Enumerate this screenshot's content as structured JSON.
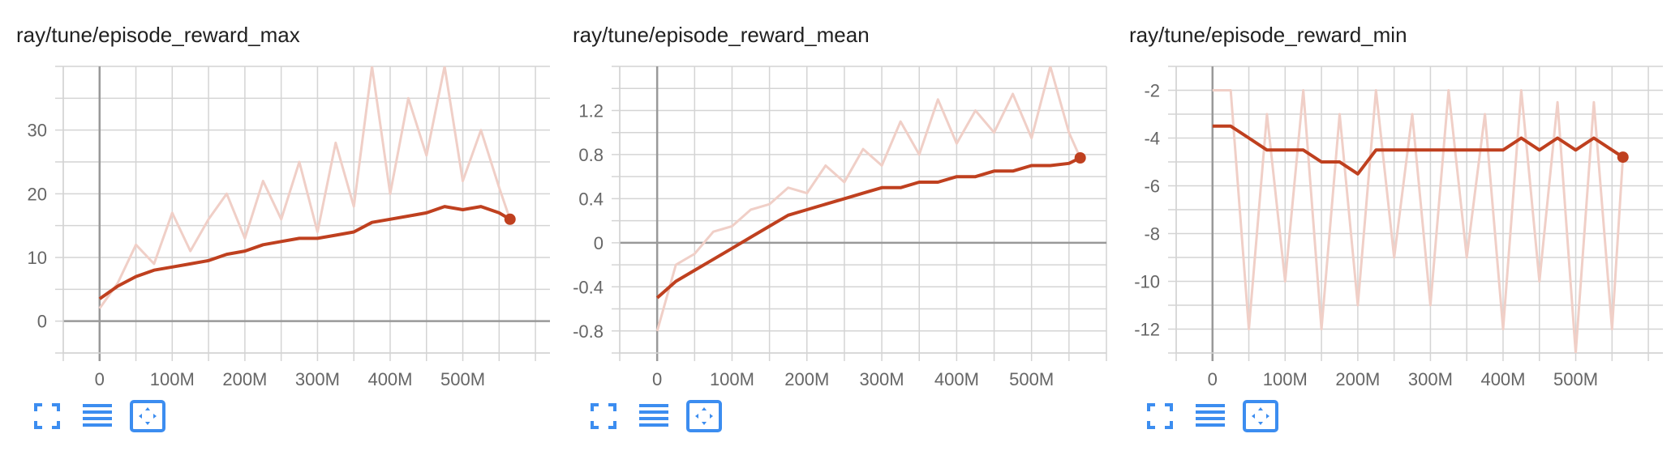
{
  "colors": {
    "smoothed": "#bf401f",
    "raw": "#f0cfc7",
    "grid": "#d4d4d4",
    "axis": "#999999",
    "tick_text": "#666666",
    "title_text": "#212121",
    "icon": "#3c8df0"
  },
  "toolbar": {
    "icons": [
      "fullscreen-icon",
      "toggle-log-scale-icon",
      "fit-domain-icon"
    ]
  },
  "chart_data": [
    {
      "type": "line",
      "title": "ray/tune/episode_reward_max",
      "xlabel": "",
      "ylabel": "",
      "xlim": [
        -50000000,
        620000000
      ],
      "ylim": [
        -5,
        40
      ],
      "xticks": [
        0,
        100000000,
        200000000,
        300000000,
        400000000,
        500000000
      ],
      "xtick_labels": [
        "0",
        "100M",
        "200M",
        "300M",
        "400M",
        "500M"
      ],
      "yticks": [
        0,
        10,
        20,
        30
      ],
      "ytick_labels": [
        "0",
        "10",
        "20",
        "30"
      ],
      "grid": true,
      "series": [
        {
          "role": "smoothed",
          "x": [
            0,
            25000000,
            50000000,
            75000000,
            100000000,
            125000000,
            150000000,
            175000000,
            200000000,
            225000000,
            250000000,
            275000000,
            300000000,
            325000000,
            350000000,
            375000000,
            400000000,
            425000000,
            450000000,
            475000000,
            500000000,
            525000000,
            550000000,
            565000000
          ],
          "y": [
            3.5,
            5.5,
            7,
            8,
            8.5,
            9,
            9.5,
            10.5,
            11,
            12,
            12.5,
            13,
            13,
            13.5,
            14,
            15.5,
            16,
            16.5,
            17,
            18,
            17.5,
            18,
            17,
            16
          ]
        },
        {
          "role": "raw",
          "x": [
            0,
            25000000,
            50000000,
            75000000,
            100000000,
            125000000,
            150000000,
            175000000,
            200000000,
            225000000,
            250000000,
            275000000,
            300000000,
            325000000,
            350000000,
            375000000,
            400000000,
            425000000,
            450000000,
            475000000,
            500000000,
            525000000,
            550000000,
            565000000
          ],
          "y": [
            2,
            6,
            12,
            9,
            17,
            11,
            16,
            20,
            13,
            22,
            16,
            25,
            14,
            28,
            18,
            40,
            20,
            35,
            26,
            40,
            22,
            30,
            21,
            16
          ]
        }
      ]
    },
    {
      "type": "line",
      "title": "ray/tune/episode_reward_mean",
      "xlabel": "",
      "ylabel": "",
      "xlim": [
        -50000000,
        600000000
      ],
      "ylim": [
        -1,
        1.6
      ],
      "xticks": [
        0,
        100000000,
        200000000,
        300000000,
        400000000,
        500000000
      ],
      "xtick_labels": [
        "0",
        "100M",
        "200M",
        "300M",
        "400M",
        "500M"
      ],
      "yticks": [
        -0.8,
        -0.4,
        0,
        0.4,
        0.8,
        1.2
      ],
      "ytick_labels": [
        "-0.8",
        "-0.4",
        "0",
        "0.4",
        "0.8",
        "1.2"
      ],
      "grid": true,
      "series": [
        {
          "role": "smoothed",
          "x": [
            0,
            25000000,
            50000000,
            75000000,
            100000000,
            125000000,
            150000000,
            175000000,
            200000000,
            225000000,
            250000000,
            275000000,
            300000000,
            325000000,
            350000000,
            375000000,
            400000000,
            425000000,
            450000000,
            475000000,
            500000000,
            525000000,
            550000000,
            565000000
          ],
          "y": [
            -0.5,
            -0.35,
            -0.25,
            -0.15,
            -0.05,
            0.05,
            0.15,
            0.25,
            0.3,
            0.35,
            0.4,
            0.45,
            0.5,
            0.5,
            0.55,
            0.55,
            0.6,
            0.6,
            0.65,
            0.65,
            0.7,
            0.7,
            0.72,
            0.77
          ]
        },
        {
          "role": "raw",
          "x": [
            0,
            25000000,
            50000000,
            75000000,
            100000000,
            125000000,
            150000000,
            175000000,
            200000000,
            225000000,
            250000000,
            275000000,
            300000000,
            325000000,
            350000000,
            375000000,
            400000000,
            425000000,
            450000000,
            475000000,
            500000000,
            525000000,
            550000000,
            565000000
          ],
          "y": [
            -0.8,
            -0.2,
            -0.1,
            0.1,
            0.15,
            0.3,
            0.35,
            0.5,
            0.45,
            0.7,
            0.55,
            0.85,
            0.7,
            1.1,
            0.8,
            1.3,
            0.9,
            1.2,
            1.0,
            1.35,
            0.95,
            1.6,
            1.0,
            0.77
          ]
        }
      ]
    },
    {
      "type": "line",
      "title": "ray/tune/episode_reward_min",
      "xlabel": "",
      "ylabel": "",
      "xlim": [
        -50000000,
        620000000
      ],
      "ylim": [
        -13,
        -1
      ],
      "xticks": [
        0,
        100000000,
        200000000,
        300000000,
        400000000,
        500000000
      ],
      "xtick_labels": [
        "0",
        "100M",
        "200M",
        "300M",
        "400M",
        "500M"
      ],
      "yticks": [
        -12,
        -10,
        -8,
        -6,
        -4,
        -2
      ],
      "ytick_labels": [
        "-12",
        "-10",
        "-8",
        "-6",
        "-4",
        "-2"
      ],
      "grid": true,
      "series": [
        {
          "role": "smoothed",
          "x": [
            0,
            25000000,
            50000000,
            75000000,
            100000000,
            125000000,
            150000000,
            175000000,
            200000000,
            225000000,
            250000000,
            275000000,
            300000000,
            325000000,
            350000000,
            375000000,
            400000000,
            425000000,
            450000000,
            475000000,
            500000000,
            525000000,
            550000000,
            565000000
          ],
          "y": [
            -3.5,
            -3.5,
            -4,
            -4.5,
            -4.5,
            -4.5,
            -5,
            -5,
            -5.5,
            -4.5,
            -4.5,
            -4.5,
            -4.5,
            -4.5,
            -4.5,
            -4.5,
            -4.5,
            -4,
            -4.5,
            -4,
            -4.5,
            -4,
            -4.5,
            -4.8
          ]
        },
        {
          "role": "raw",
          "x": [
            0,
            25000000,
            50000000,
            75000000,
            100000000,
            125000000,
            150000000,
            175000000,
            200000000,
            225000000,
            250000000,
            275000000,
            300000000,
            325000000,
            350000000,
            375000000,
            400000000,
            425000000,
            450000000,
            475000000,
            500000000,
            525000000,
            550000000,
            565000000
          ],
          "y": [
            -2,
            -2,
            -12,
            -3,
            -10,
            -2,
            -12,
            -3,
            -11,
            -2,
            -9,
            -3,
            -11,
            -2,
            -9,
            -3,
            -12,
            -2,
            -10,
            -2.5,
            -13,
            -2.5,
            -12,
            -4.8
          ]
        }
      ]
    }
  ]
}
